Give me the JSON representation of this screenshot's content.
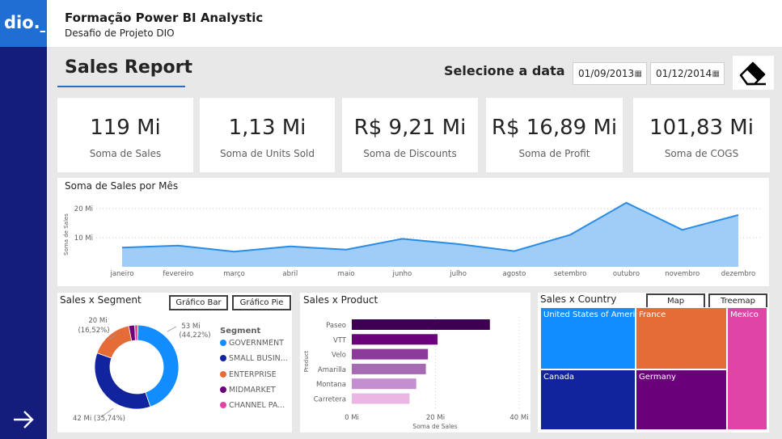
{
  "header": {
    "title": "Formação Power BI Analystic",
    "subtitle": "Desafio de Projeto DIO",
    "logo_text": "dio._"
  },
  "report": {
    "title": "Sales Report",
    "date_label": "Selecione a data",
    "date_start": "01/09/2013",
    "date_end": "01/12/2014"
  },
  "kpis": [
    {
      "value": "119 Mi",
      "label": "Soma de  Sales"
    },
    {
      "value": "1,13 Mi",
      "label": "Soma de Units Sold"
    },
    {
      "value": "R$ 9,21 Mi",
      "label": "Soma de Discounts"
    },
    {
      "value": "R$ 16,89 Mi",
      "label": "Soma de Profit"
    },
    {
      "value": "101,83 Mi",
      "label": "Soma de COGS"
    }
  ],
  "sales_by_month": {
    "title": "Soma de Sales por Mês",
    "ylabel": "Soma de Sales",
    "y_ticks": [
      "10 Mi",
      "20 Mi"
    ],
    "months": [
      "janeiro",
      "fevereiro",
      "março",
      "abril",
      "maio",
      "junho",
      "julho",
      "agosto",
      "setembro",
      "outubro",
      "novembro",
      "dezembro"
    ]
  },
  "segment": {
    "title": "Sales x Segment",
    "btn_bar": "Gráfico Bar",
    "btn_pie": "Gráfico Pie",
    "legend_title": "Segment",
    "legend": [
      "GOVERNMENT",
      "SMALL BUSIN...",
      "ENTERPRISE",
      "MIDMARKET",
      "CHANNEL PA..."
    ],
    "label_gov_1": "53 Mi",
    "label_gov_2": "(44,22%)",
    "label_small": "42 Mi (35,74%)",
    "label_ent_1": "20 Mi",
    "label_ent_2": "(16,52%)"
  },
  "product": {
    "title": "Sales x Product",
    "xlabel": "Soma de Sales",
    "ylabel": "Product",
    "x_ticks": [
      "0 Mi",
      "20 Mi",
      "40 Mi"
    ]
  },
  "country": {
    "title": "Sales x Country",
    "btn_map": "Map",
    "btn_treemap": "Treemap",
    "cells": [
      "United States of America",
      "France",
      "Mexico",
      "Canada",
      "Germany"
    ]
  },
  "colors": {
    "accent": "#1f6ed4",
    "nav": "#141d7c",
    "area": "#9fcdf7",
    "line": "#2b8ce6"
  },
  "chart_data": [
    {
      "type": "area",
      "title": "Soma de Sales por Mês",
      "ylabel": "Soma de Sales",
      "categories": [
        "janeiro",
        "fevereiro",
        "março",
        "abril",
        "maio",
        "junho",
        "julho",
        "agosto",
        "setembro",
        "outubro",
        "novembro",
        "dezembro"
      ],
      "values": [
        6.6,
        7.3,
        5.2,
        7.0,
        5.9,
        9.6,
        7.8,
        5.4,
        11.0,
        22.0,
        12.7,
        17.8
      ],
      "ylim": [
        0,
        25
      ],
      "grid": true
    },
    {
      "type": "pie",
      "title": "Sales x Segment",
      "categories": [
        "GOVERNMENT",
        "SMALL BUSIN...",
        "ENTERPRISE",
        "MIDMARKET",
        "CHANNEL PA..."
      ],
      "values": [
        44.22,
        35.74,
        16.52,
        2.3,
        1.22
      ],
      "colors": [
        "#118dff",
        "#12239e",
        "#e66c37",
        "#6b007b",
        "#e044a7"
      ]
    },
    {
      "type": "bar",
      "title": "Sales x Product",
      "xlabel": "Soma de Sales",
      "ylabel": "Product",
      "categories": [
        "Paseo",
        "VTT",
        "Velo",
        "Amarilla",
        "Montana",
        "Carretera"
      ],
      "values": [
        33,
        20.5,
        18.2,
        17.7,
        15.4,
        13.8
      ],
      "xlim": [
        0,
        40
      ],
      "colors": [
        "#3e0052",
        "#6b007b",
        "#8b3b9a",
        "#a46bb3",
        "#c38fd0",
        "#eab6e3"
      ]
    },
    {
      "type": "heatmap",
      "title": "Sales x Country",
      "categories": [
        "United States of America",
        "France",
        "Mexico",
        "Canada",
        "Germany"
      ],
      "colors": [
        "#118dff",
        "#e66c37",
        "#e044a7",
        "#12239e",
        "#6b007b"
      ]
    }
  ]
}
